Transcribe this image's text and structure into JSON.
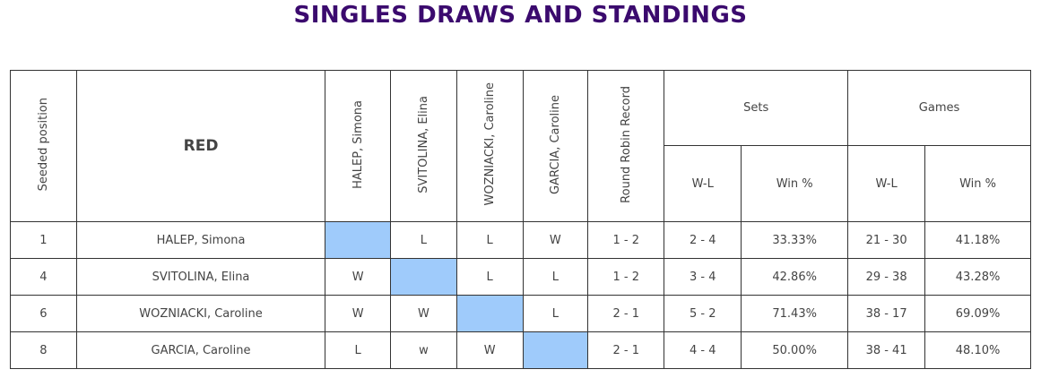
{
  "page_title": "SINGLES DRAWS AND STANDINGS",
  "group_name": "RED",
  "headers": {
    "seeded_position": "Seeded position",
    "opponents": [
      "HALEP, Simona",
      "SVITOLINA, Elina",
      "WOZNIACKI, Caroline",
      "GARCIA, Caroline"
    ],
    "round_robin_record": "Round Robin Record",
    "sets": "Sets",
    "games": "Games",
    "wl": "W-L",
    "win_pct": "Win %"
  },
  "colors": {
    "title": "#3b0a6e",
    "self_cell": "#9fcbfb"
  },
  "rows": [
    {
      "seed": "1",
      "name": "HALEP, Simona",
      "results": [
        "",
        "L",
        "L",
        "W"
      ],
      "record": "1 - 2",
      "sets_wl": "2 - 4",
      "sets_pct": "33.33%",
      "games_wl": "21 - 30",
      "games_pct": "41.18%"
    },
    {
      "seed": "4",
      "name": "SVITOLINA, Elina",
      "results": [
        "W",
        "",
        "L",
        "L"
      ],
      "record": "1 - 2",
      "sets_wl": "3 - 4",
      "sets_pct": "42.86%",
      "games_wl": "29 - 38",
      "games_pct": "43.28%"
    },
    {
      "seed": "6",
      "name": "WOZNIACKI, Caroline",
      "results": [
        "W",
        "W",
        "",
        "L"
      ],
      "record": "2 - 1",
      "sets_wl": "5 - 2",
      "sets_pct": "71.43%",
      "games_wl": "38 - 17",
      "games_pct": "69.09%"
    },
    {
      "seed": "8",
      "name": "GARCIA, Caroline",
      "results": [
        "L",
        "w",
        "W",
        ""
      ],
      "record": "2 - 1",
      "sets_wl": "4 - 4",
      "sets_pct": "50.00%",
      "games_wl": "38 - 41",
      "games_pct": "48.10%"
    }
  ]
}
